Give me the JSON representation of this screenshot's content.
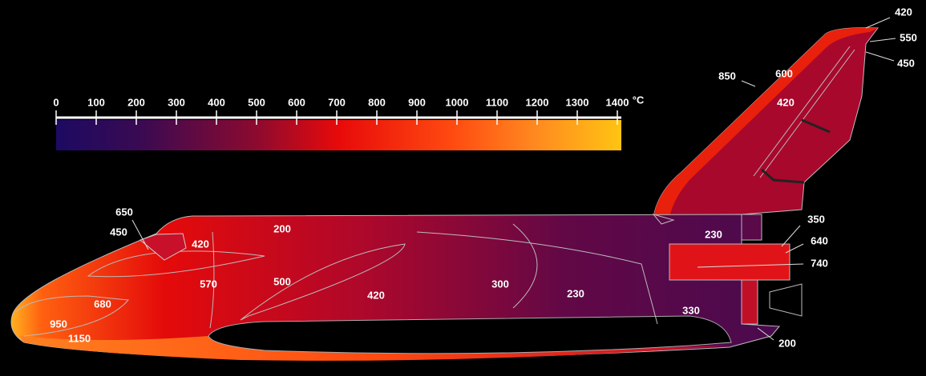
{
  "scale": {
    "ticks": [
      0,
      100,
      200,
      300,
      400,
      500,
      600,
      700,
      800,
      900,
      1000,
      1100,
      1200,
      1300,
      1400
    ],
    "unit": "°C"
  },
  "labels": [
    850,
    600,
    420,
    420,
    550,
    450,
    650,
    450,
    420,
    200,
    230,
    350,
    640,
    740,
    570,
    500,
    420,
    300,
    230,
    330,
    680,
    950,
    1150,
    200
  ]
}
